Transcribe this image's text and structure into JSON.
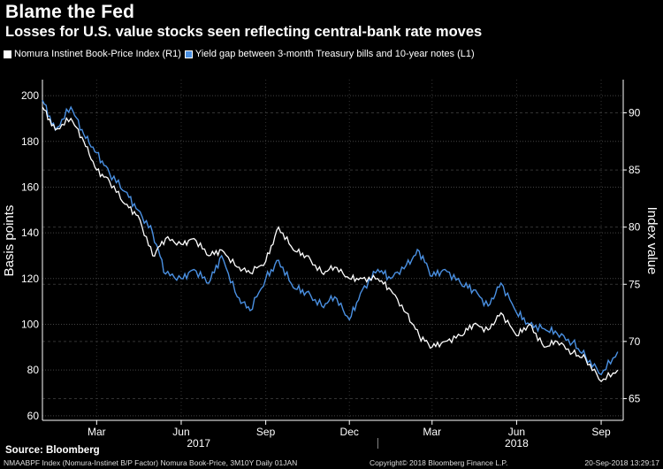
{
  "chart_data": {
    "type": "line",
    "title": "Blame the Fed",
    "subtitle": "Losses for U.S. value stocks seen reflecting central-bank rate moves",
    "ylabel_left": "Basis points",
    "ylabel_right": "Index value",
    "ylim_left": [
      58,
      207
    ],
    "ylim_right": [
      63.1,
      92.9
    ],
    "yticks_left": [
      60,
      80,
      100,
      120,
      140,
      160,
      180,
      200
    ],
    "yticks_right": [
      65,
      70,
      75,
      80,
      85,
      90
    ],
    "x_ticks": [
      {
        "date": "2017-03-01",
        "label": "Mar"
      },
      {
        "date": "2017-06-01",
        "label": "Jun"
      },
      {
        "date": "2017-09-01",
        "label": "Sep"
      },
      {
        "date": "2017-12-01",
        "label": "Dec"
      },
      {
        "date": "2018-03-01",
        "label": "Mar"
      },
      {
        "date": "2018-06-01",
        "label": "Jun"
      },
      {
        "date": "2018-09-01",
        "label": "Sep"
      }
    ],
    "year_labels": [
      {
        "label": "2017",
        "center": "2017-06-20"
      },
      {
        "label": "2018",
        "center": "2018-06-01"
      }
    ],
    "year_divider": "2018-01-01",
    "grid": true,
    "legend_position": "top-left",
    "series": [
      {
        "name": "Nomura Instinet Book-Price Index (R1)",
        "axis": "right",
        "color": "#ffffff",
        "x": [
          "2017-01-01",
          "2017-01-15",
          "2017-02-01",
          "2017-02-15",
          "2017-03-01",
          "2017-03-15",
          "2017-04-01",
          "2017-04-15",
          "2017-05-01",
          "2017-05-15",
          "2017-06-01",
          "2017-06-15",
          "2017-07-01",
          "2017-07-15",
          "2017-08-01",
          "2017-08-15",
          "2017-09-01",
          "2017-09-15",
          "2017-10-01",
          "2017-10-15",
          "2017-11-01",
          "2017-11-15",
          "2017-12-01",
          "2017-12-15",
          "2018-01-01",
          "2018-01-15",
          "2018-02-01",
          "2018-02-15",
          "2018-03-01",
          "2018-03-15",
          "2018-04-01",
          "2018-04-15",
          "2018-05-01",
          "2018-05-15",
          "2018-06-01",
          "2018-06-15",
          "2018-07-01",
          "2018-07-15",
          "2018-08-01",
          "2018-08-15",
          "2018-09-01",
          "2018-09-19"
        ],
        "values": [
          90.5,
          88.5,
          89.5,
          87.5,
          85.0,
          84.0,
          82.0,
          81.0,
          77.5,
          79.0,
          78.5,
          79.0,
          77.5,
          78.0,
          76.5,
          76.0,
          77.0,
          80.0,
          78.0,
          77.5,
          76.0,
          76.5,
          75.5,
          75.5,
          75.5,
          74.5,
          72.5,
          70.5,
          69.5,
          70.0,
          70.5,
          71.5,
          71.0,
          72.5,
          70.5,
          71.5,
          69.5,
          70.0,
          69.0,
          68.5,
          66.5,
          67.5
        ]
      },
      {
        "name": "Yield gap between 3-month Treasury bills and 10-year notes (L1)",
        "axis": "left",
        "color": "#4a90e2",
        "x": [
          "2017-01-01",
          "2017-01-15",
          "2017-02-01",
          "2017-02-15",
          "2017-03-01",
          "2017-03-15",
          "2017-04-01",
          "2017-04-15",
          "2017-05-01",
          "2017-05-15",
          "2017-06-01",
          "2017-06-15",
          "2017-07-01",
          "2017-07-15",
          "2017-08-01",
          "2017-08-15",
          "2017-09-01",
          "2017-09-15",
          "2017-10-01",
          "2017-10-15",
          "2017-11-01",
          "2017-11-15",
          "2017-12-01",
          "2017-12-15",
          "2018-01-01",
          "2018-01-15",
          "2018-02-01",
          "2018-02-15",
          "2018-03-01",
          "2018-03-15",
          "2018-04-01",
          "2018-04-15",
          "2018-05-01",
          "2018-05-15",
          "2018-06-01",
          "2018-06-15",
          "2018-07-01",
          "2018-07-15",
          "2018-08-01",
          "2018-08-15",
          "2018-09-01",
          "2018-09-19"
        ],
        "values": [
          198,
          185,
          195,
          183,
          175,
          166,
          158,
          150,
          140,
          122,
          120,
          124,
          118,
          130,
          112,
          106,
          120,
          128,
          116,
          114,
          108,
          112,
          102,
          115,
          124,
          120,
          126,
          132,
          121,
          124,
          118,
          115,
          108,
          118,
          105,
          100,
          98,
          96,
          92,
          86,
          78,
          88
        ]
      }
    ]
  },
  "source": "Source: Bloomberg",
  "footer": {
    "left": "NMAABPF Index (Nomura-Instinet B/P Factor) Nomura Book-Price, 3M10Y  Daily 01JAN",
    "center": "Copyright© 2018 Bloomberg Finance L.P.",
    "right": "20-Sep-2018 13:29:17"
  }
}
